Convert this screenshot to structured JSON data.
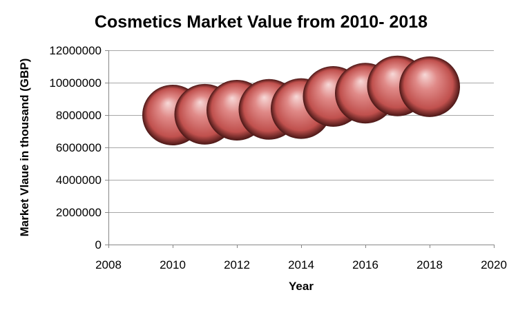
{
  "chart_data": {
    "type": "scatter",
    "marker_style": "sphere",
    "title": "Cosmetics Market Value from 2010- 2018",
    "xlabel": "Year",
    "ylabel": "Market Vlaue in thousand  (GBP)",
    "xlim": [
      2008,
      2020
    ],
    "ylim": [
      0,
      12000000
    ],
    "x_ticks": [
      2008,
      2010,
      2012,
      2014,
      2016,
      2018,
      2020
    ],
    "y_ticks": [
      0,
      2000000,
      4000000,
      6000000,
      8000000,
      10000000,
      12000000
    ],
    "x_tick_labels": [
      "2008",
      "2010",
      "2012",
      "2014",
      "2016",
      "2018",
      "2020"
    ],
    "y_tick_labels": [
      "0",
      "2000000",
      "4000000",
      "6000000",
      "8000000",
      "10000000",
      "12000000"
    ],
    "grid": "horizontal",
    "legend": "none",
    "x": [
      2010,
      2011,
      2012,
      2013,
      2014,
      2015,
      2016,
      2017,
      2018
    ],
    "y": [
      8000000,
      8050000,
      8300000,
      8350000,
      8400000,
      9150000,
      9350000,
      9800000,
      9750000
    ],
    "colors": {
      "marker": "#c0504d",
      "marker_highlight": "#f7d9d8",
      "marker_shadow": "#4a1716",
      "gridline": "#a6a6a6",
      "axis": "#868686"
    }
  }
}
